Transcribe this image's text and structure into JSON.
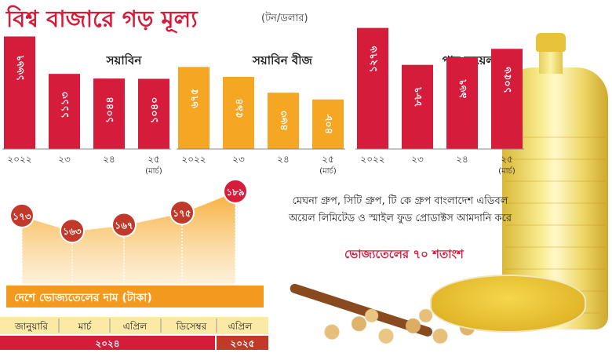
{
  "title": "বিশ্ব বাজারে গড় মূল্য",
  "unit": "(টন/ডলার)",
  "colors": {
    "red": "#d51d3b",
    "orange": "#f5a623",
    "dark_red": "#c0392b",
    "axis_gray": "#888888"
  },
  "company_note": "মেঘনা গ্রুপ, সিটি গ্রুপ, টি কে গ্রুপ বাংলাদেশ এডিবল অয়েল লিমিটেড ও স্মাইল ফুড প্রোডাক্টস আমদানি করে",
  "share_note": "ভোজ্যতেলের ৭০ শতাংশ",
  "chart_data": [
    {
      "type": "bar",
      "title": "সয়াবিন",
      "color": "#d51d3b",
      "categories": [
        "২০২২",
        "২৩",
        "২৪",
        "২৫"
      ],
      "category_notes": [
        "",
        "",
        "",
        "(মার্চ)"
      ],
      "values": [
        1667,
        1113,
        1044,
        1040
      ],
      "value_labels": [
        "১৬৬৭",
        "১১১৩",
        "১০৪৪",
        "১০৪০"
      ]
    },
    {
      "type": "bar",
      "title": "সয়াবিন বীজ",
      "color": "#f5a623",
      "categories": [
        "২০২২",
        "২৩",
        "২৪",
        "২৫"
      ],
      "category_notes": [
        "",
        "",
        "",
        "(মার্চ)"
      ],
      "values": [
        675,
        594,
        463,
        408
      ],
      "value_labels": [
        "৬৭৫",
        "৫৯৪",
        "৪৬৩",
        "৪০৮"
      ]
    },
    {
      "type": "bar",
      "title": "পাম অয়েল",
      "color": "#d51d3b",
      "categories": [
        "২০২২",
        "২৩",
        "২৪",
        "২৫"
      ],
      "category_notes": [
        "",
        "",
        "",
        "(মার্চ)"
      ],
      "values": [
        1276,
        887,
        967,
        1056
      ],
      "value_labels": [
        "১২৭৬",
        "৮৮৭",
        "৯৬৭",
        "১০৫৬"
      ]
    },
    {
      "type": "area",
      "title": "দেশে ভোজ্যতেলের দাম (টাকা)",
      "color": "#f5a623",
      "categories": [
        "জানুয়ারি",
        "মার্চ",
        "এপ্রিল",
        "ডিসেম্বর",
        "এপ্রিল"
      ],
      "values": [
        173,
        163,
        167,
        175,
        189
      ],
      "value_labels": [
        "১৭৩",
        "১৬৩",
        "১৬৭",
        "১৭৫",
        "১৮৯"
      ],
      "year_groups": [
        {
          "label": "২০২৪",
          "count": 4
        },
        {
          "label": "২০২৫",
          "count": 1
        }
      ]
    }
  ]
}
